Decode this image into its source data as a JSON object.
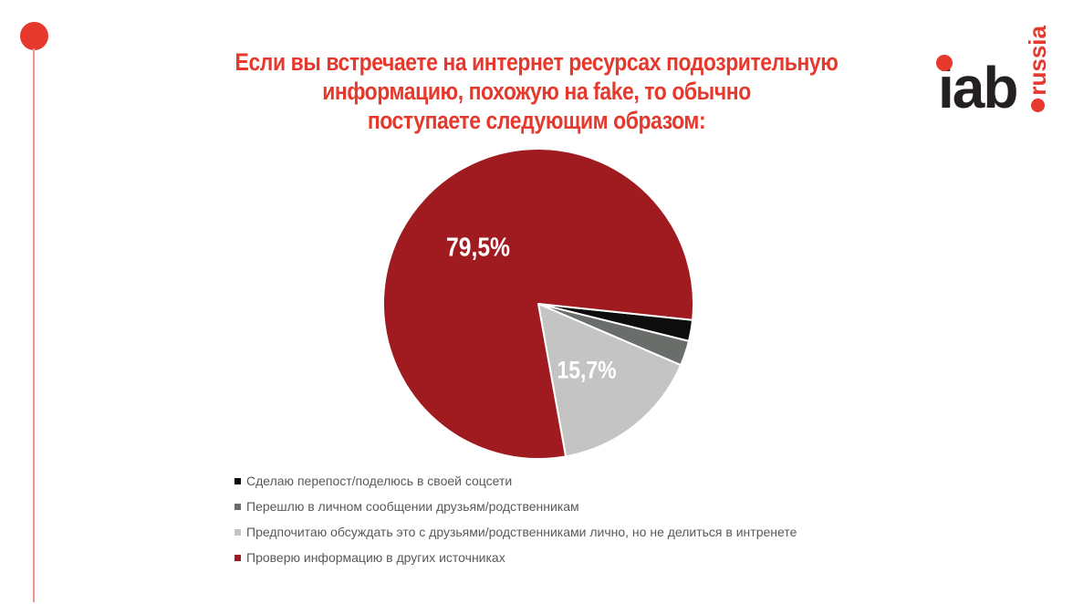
{
  "slide": {
    "title_lines": [
      "Если вы встречаете на интернет ресурсах подозрительную",
      "информацию, похожую на fake, то обычно",
      "поступаете следующим образом:"
    ],
    "colors": {
      "title_red": "#e6382c",
      "deco_dot_red": "#e6382c",
      "deco_line_pink": "#f2948e",
      "legend_text_gray": "#595959",
      "background": "#ffffff"
    }
  },
  "logo": {
    "brand": "iab",
    "region": "russia",
    "brand_color": "#242021",
    "accent_color": "#e6382c"
  },
  "chart_data": {
    "type": "pie",
    "title": "Если вы встречаете на интернет ресурсах подозрительную информацию, похожую на fake, то обычно поступаете следующим образом:",
    "legend_position": "bottom-left",
    "start_angle_clockwise_from_top_deg": 96,
    "data_label_color": "#ffffff",
    "unlabeled_small_slices_estimated": true,
    "slices": [
      {
        "label": "Сделаю перепост/поделюсь в своей соцсети",
        "value": 2.2,
        "color": "#0d0d0d",
        "data_label": ""
      },
      {
        "label": "Перешлю в личном сообщении друзьям/родственникам",
        "value": 2.6,
        "color": "#6a6e6b",
        "data_label": ""
      },
      {
        "label": "Предпочитаю обсуждать это с друзьями/родственниками лично, но не делиться в интренете",
        "value": 15.7,
        "color": "#c3c4c3",
        "data_label": "15,7%"
      },
      {
        "label": "Проверю информацию в других источниках",
        "value": 79.5,
        "color": "#a01b20",
        "data_label": "79,5%"
      }
    ]
  }
}
